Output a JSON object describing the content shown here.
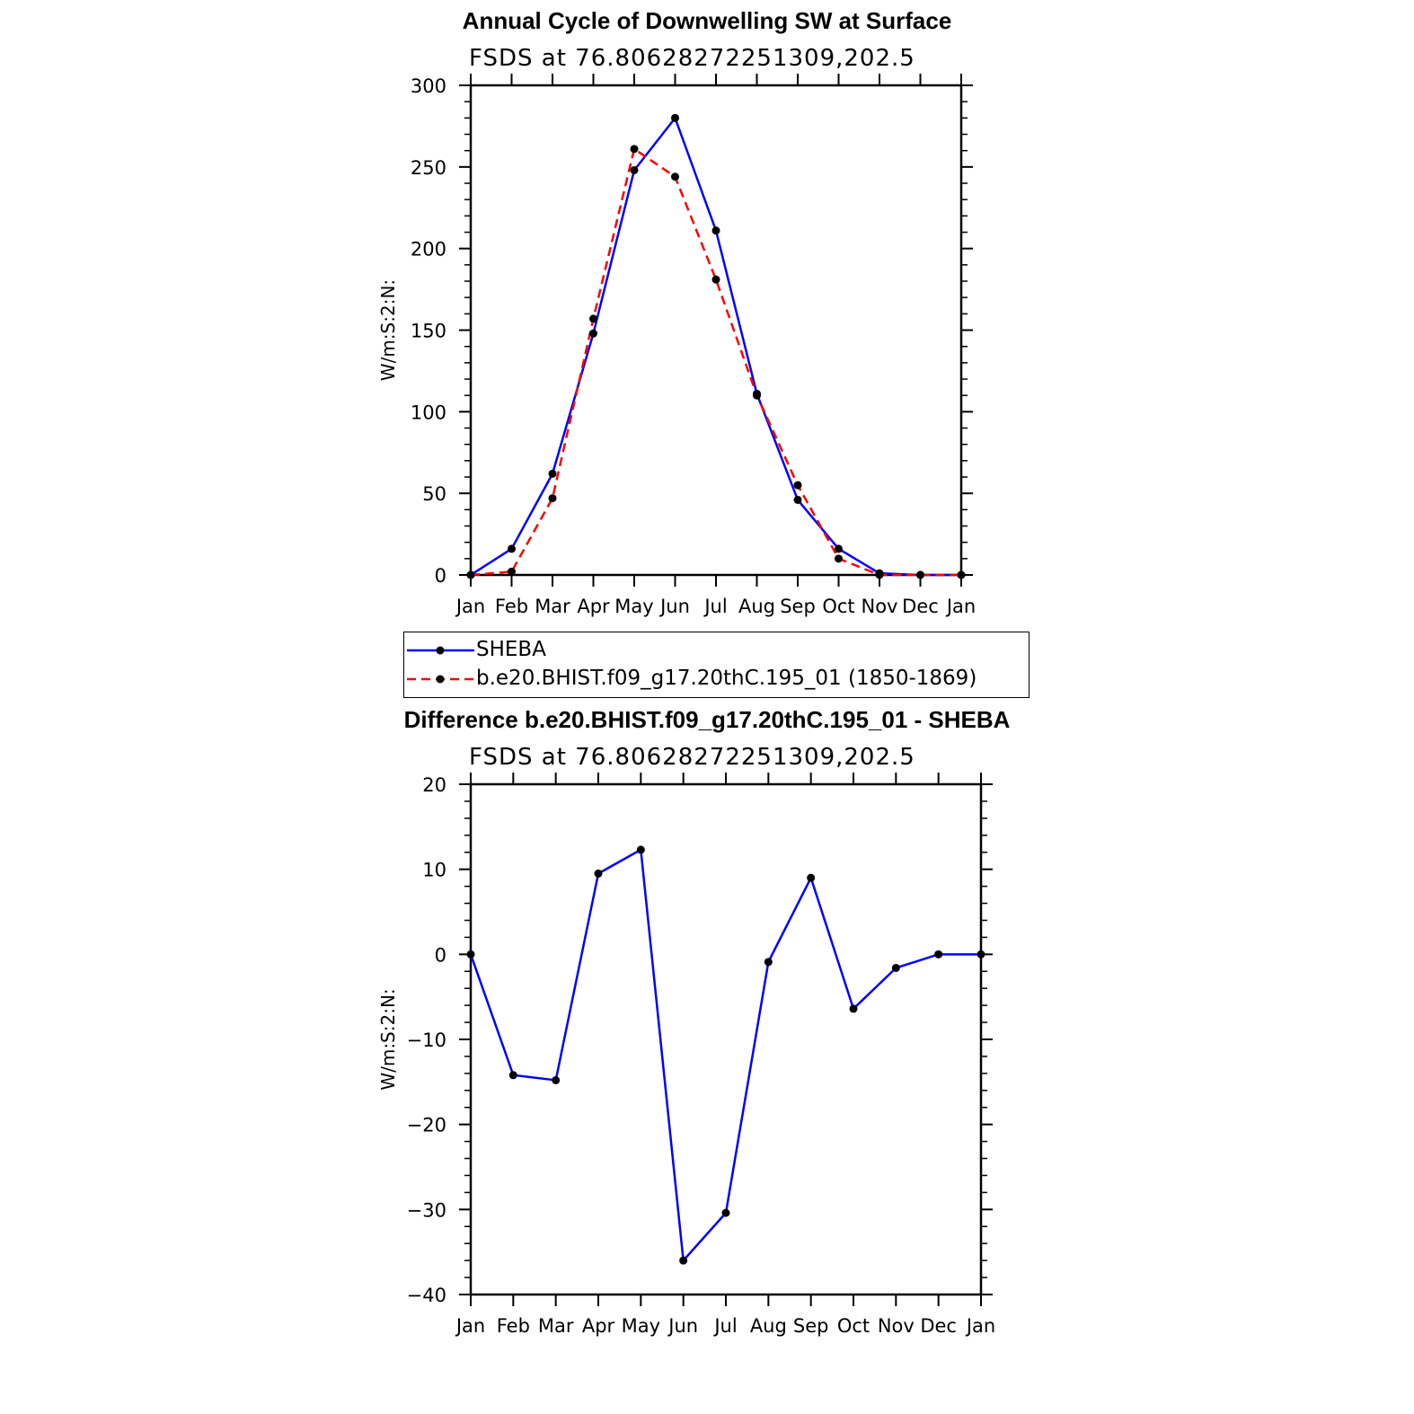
{
  "chart_data": [
    {
      "type": "line",
      "title": "Annual Cycle of Downwelling SW at Surface",
      "subtitle": "FSDS at 76.80628272251309,202.5",
      "ylabel": "W/m:S:2:N:",
      "ylim": [
        0,
        300
      ],
      "yticks": [
        0,
        50,
        100,
        150,
        200,
        250,
        300
      ],
      "categories": [
        "Jan",
        "Feb",
        "Mar",
        "Apr",
        "May",
        "Jun",
        "Jul",
        "Aug",
        "Sep",
        "Oct",
        "Nov",
        "Dec",
        "Jan"
      ],
      "series": [
        {
          "name": "SHEBA",
          "color": "#0000ff",
          "style": "solid",
          "values": [
            0,
            16,
            62,
            148,
            248,
            280,
            211,
            111,
            46,
            16,
            1,
            0,
            0
          ]
        },
        {
          "name": "b.e20.BHIST.f09_g17.20thC.195_01 (1850-1869)",
          "color": "#ff0000",
          "style": "dashed",
          "values": [
            0,
            2,
            47,
            157,
            261,
            244,
            181,
            110,
            55,
            10,
            0,
            0,
            0
          ]
        }
      ],
      "legend": "below"
    },
    {
      "type": "line",
      "title": "Difference b.e20.BHIST.f09_g17.20thC.195_01 - SHEBA",
      "subtitle": "FSDS at 76.80628272251309,202.5",
      "ylabel": "W/m:S:2:N:",
      "ylim": [
        -40,
        20
      ],
      "yticks": [
        -40,
        -30,
        -20,
        -10,
        0,
        10,
        20
      ],
      "categories": [
        "Jan",
        "Feb",
        "Mar",
        "Apr",
        "May",
        "Jun",
        "Jul",
        "Aug",
        "Sep",
        "Oct",
        "Nov",
        "Dec",
        "Jan"
      ],
      "series": [
        {
          "color": "#0000ff",
          "style": "solid",
          "values": [
            0,
            -14.2,
            -14.8,
            9.5,
            12.3,
            -36,
            -30.4,
            -0.9,
            9,
            -6.4,
            -1.6,
            0,
            0
          ]
        }
      ]
    }
  ]
}
